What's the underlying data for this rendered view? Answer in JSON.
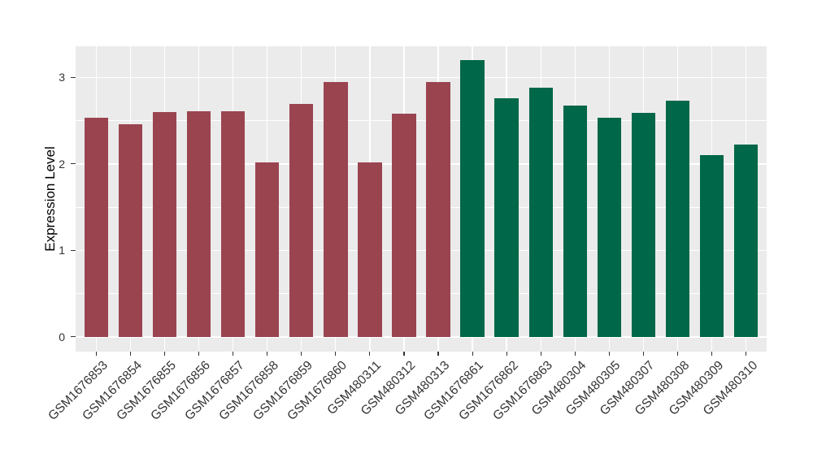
{
  "chart_data": {
    "type": "bar",
    "title": "",
    "xlabel": "",
    "ylabel": "Expression Level",
    "categories": [
      "GSM1676853",
      "GSM1676854",
      "GSM1676855",
      "GSM1676856",
      "GSM1676857",
      "GSM1676858",
      "GSM1676859",
      "GSM1676860",
      "GSM480311",
      "GSM480312",
      "GSM480313",
      "GSM1676861",
      "GSM1676862",
      "GSM1676863",
      "GSM480304",
      "GSM480305",
      "GSM480307",
      "GSM480308",
      "GSM480309",
      "GSM480310"
    ],
    "values": [
      2.53,
      2.46,
      2.6,
      2.61,
      2.61,
      2.02,
      2.69,
      2.95,
      2.02,
      2.58,
      2.95,
      3.2,
      2.76,
      2.88,
      2.67,
      2.53,
      2.59,
      2.73,
      2.1,
      2.22
    ],
    "colors": [
      "#9A4450",
      "#9A4450",
      "#9A4450",
      "#9A4450",
      "#9A4450",
      "#9A4450",
      "#9A4450",
      "#9A4450",
      "#9A4450",
      "#9A4450",
      "#9A4450",
      "#006748",
      "#006748",
      "#006748",
      "#006748",
      "#006748",
      "#006748",
      "#006748",
      "#006748",
      "#006748"
    ],
    "group_colors": {
      "maroon_group": "#9A4450",
      "green_group": "#006748"
    },
    "yticks": [
      0,
      1,
      2,
      3
    ],
    "yticks_minor": [
      0.5,
      1.5,
      2.5
    ],
    "ylim": [
      -0.17,
      3.36
    ],
    "legend": "none",
    "grid": true,
    "panel_bg": "#EBEBEB",
    "grid_color": "#FFFFFF",
    "axis_text_color": "#333333",
    "bar_width_fraction": 0.7
  }
}
